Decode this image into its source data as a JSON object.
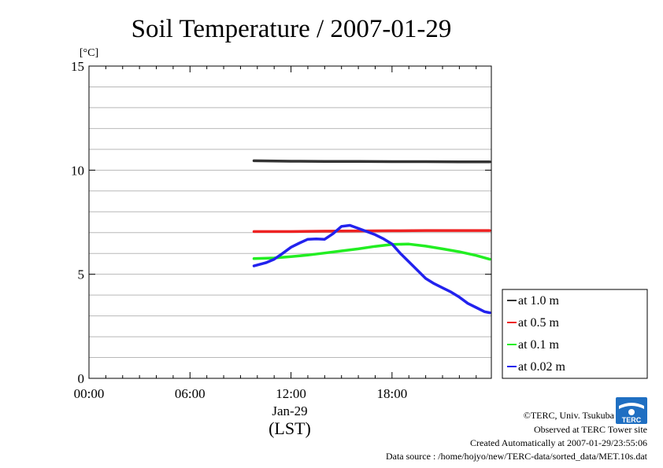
{
  "chart_data": {
    "type": "line",
    "title": "Soil Temperature / 2007-01-29",
    "ylabel": "[°C]",
    "xlabel": "(LST)",
    "xlim": [
      0,
      23.9
    ],
    "ylim": [
      0,
      15
    ],
    "yticks": [
      0,
      5,
      10,
      15
    ],
    "xticks": [
      {
        "value": 0,
        "label": "00:00"
      },
      {
        "value": 6,
        "label": "06:00"
      },
      {
        "value": 12,
        "label": "12:00"
      },
      {
        "value": 18,
        "label": "18:00"
      }
    ],
    "date_label": "Jan-29",
    "grid": true,
    "legend_position": "right-bottom",
    "series": [
      {
        "name": "at 1.0 m",
        "color": "#333333",
        "x": [
          9.8,
          12,
          14,
          16,
          18,
          20,
          22,
          23.8
        ],
        "y": [
          10.45,
          10.43,
          10.42,
          10.42,
          10.41,
          10.41,
          10.4,
          10.4
        ]
      },
      {
        "name": "at 0.5 m",
        "color": "#ee2222",
        "x": [
          9.8,
          12,
          14,
          16,
          18,
          20,
          22,
          23.8
        ],
        "y": [
          7.05,
          7.05,
          7.07,
          7.08,
          7.09,
          7.1,
          7.1,
          7.1
        ]
      },
      {
        "name": "at 0.1 m",
        "color": "#22ee22",
        "x": [
          9.8,
          11,
          12,
          13,
          14,
          15,
          16,
          17,
          18,
          19,
          20,
          21,
          22,
          23,
          23.8
        ],
        "y": [
          5.75,
          5.78,
          5.85,
          5.92,
          6.02,
          6.12,
          6.22,
          6.34,
          6.43,
          6.45,
          6.35,
          6.22,
          6.08,
          5.9,
          5.72
        ]
      },
      {
        "name": "at 0.02 m",
        "color": "#2222ee",
        "x": [
          9.8,
          10.5,
          11,
          11.5,
          12,
          12.5,
          13,
          13.5,
          14,
          14.5,
          15,
          15.5,
          16,
          16.5,
          17,
          17.5,
          18,
          18.5,
          19,
          19.5,
          20,
          20.5,
          21,
          21.5,
          22,
          22.5,
          23,
          23.5,
          23.8
        ],
        "y": [
          5.4,
          5.55,
          5.72,
          6.0,
          6.3,
          6.5,
          6.68,
          6.7,
          6.68,
          6.95,
          7.3,
          7.35,
          7.2,
          7.05,
          6.9,
          6.7,
          6.45,
          6.0,
          5.6,
          5.2,
          4.8,
          4.55,
          4.35,
          4.15,
          3.9,
          3.6,
          3.4,
          3.2,
          3.15
        ]
      }
    ]
  },
  "footer": {
    "copyright": "©TERC, Univ. Tsukuba",
    "site": "Observed at TERC Tower site",
    "created": "Created Automatically at 2007-01-29/23:55:06",
    "source": "Data source : /home/hojyo/new/TERC-data/sorted_data/MET.10s.dat"
  },
  "logo": {
    "text": "TERC",
    "color": "#1f6fc2"
  }
}
